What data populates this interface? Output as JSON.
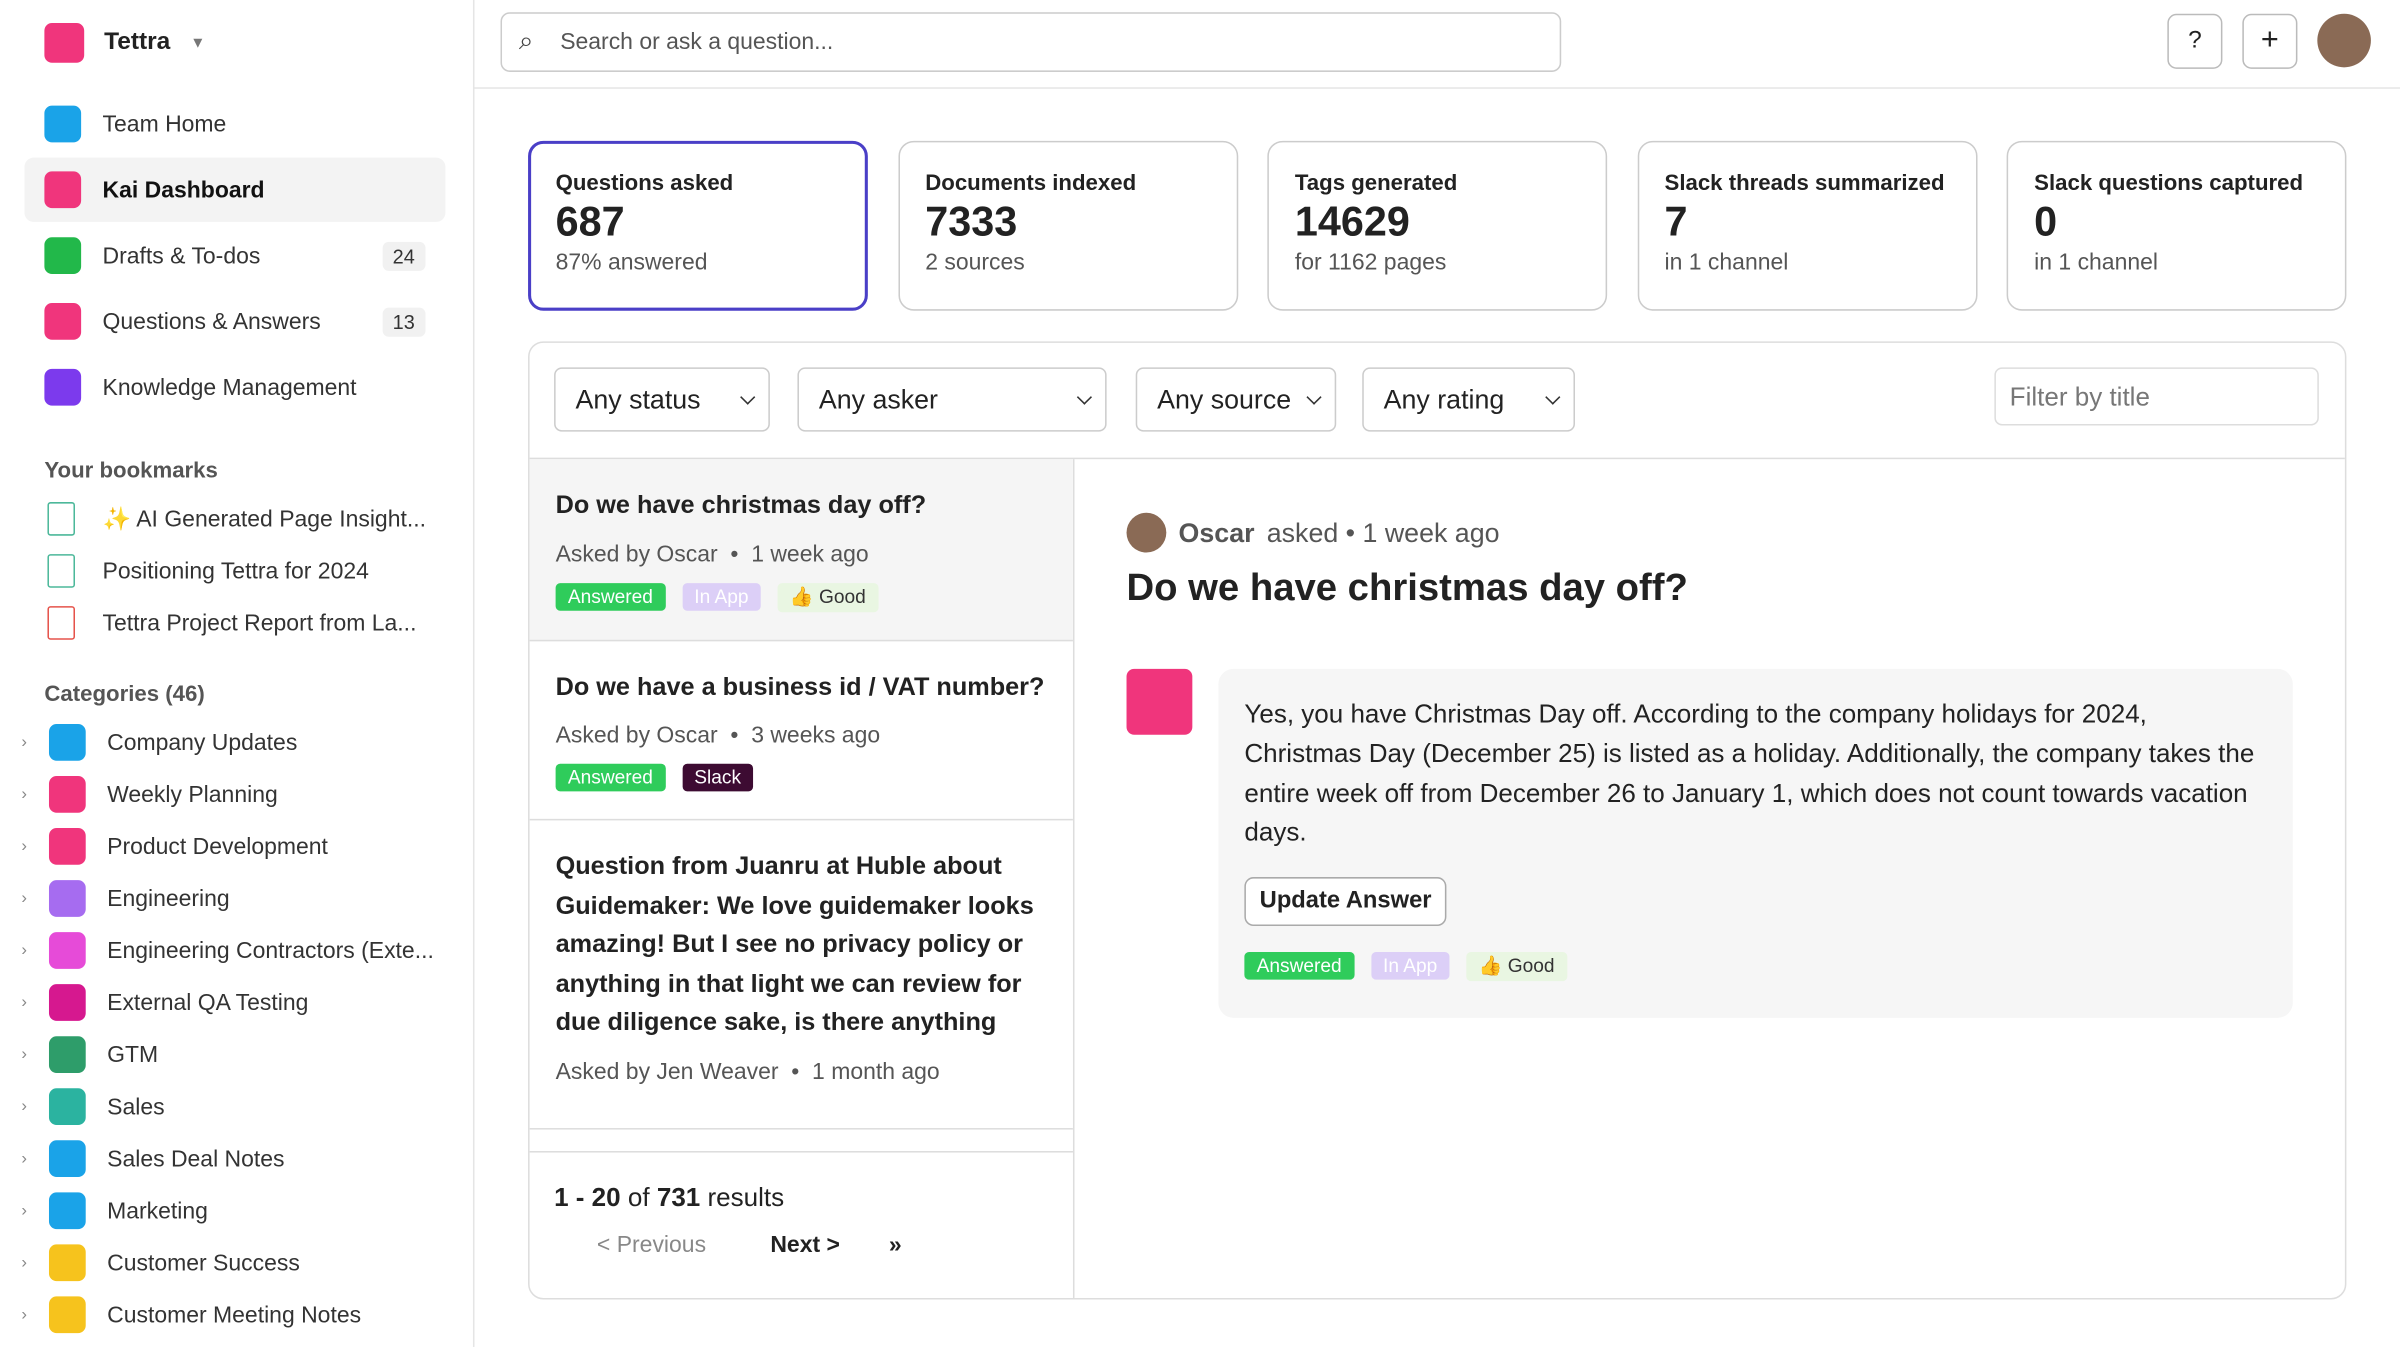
{
  "workspace": "Tettra",
  "search_placeholder": "Search or ask a question...",
  "nav": [
    {
      "label": "Team Home",
      "color": "#1aa3e8"
    },
    {
      "label": "Kai Dashboard",
      "color": "#f0357c"
    },
    {
      "label": "Drafts & To-dos",
      "count": 24,
      "color": "#22b84a"
    },
    {
      "label": "Questions & Answers",
      "count": 13,
      "color": "#f0357c"
    },
    {
      "label": "Knowledge Management",
      "color": "#7c3aed"
    }
  ],
  "bookmarks_title": "Your bookmarks",
  "bookmarks": [
    "✨ AI Generated Page Insight...",
    "Positioning Tettra for 2024",
    "Tettra Project Report from La..."
  ],
  "categories_title": "Categories (46)",
  "categories": [
    {
      "label": "Company Updates",
      "color": "#1aa3e8"
    },
    {
      "label": "Weekly Planning",
      "color": "#f0357c"
    },
    {
      "label": "Product Development",
      "color": "#f0357c"
    },
    {
      "label": "Engineering",
      "color": "#a66cf0"
    },
    {
      "label": "Engineering Contractors (Exte...",
      "color": "#e64bd8"
    },
    {
      "label": "External QA Testing",
      "color": "#d6188f"
    },
    {
      "label": "GTM",
      "color": "#2e9d6a"
    },
    {
      "label": "Sales",
      "color": "#2bb3a0"
    },
    {
      "label": "Sales Deal Notes",
      "color": "#1aa3e8"
    },
    {
      "label": "Marketing",
      "color": "#1aa3e8"
    },
    {
      "label": "Customer Success",
      "color": "#f6c31d"
    },
    {
      "label": "Customer Meeting Notes",
      "color": "#f6c31d"
    }
  ],
  "stats": [
    {
      "label": "Questions asked",
      "value": 687,
      "sub": "87% answered"
    },
    {
      "label": "Documents indexed",
      "value": 7333,
      "sub": "2 sources"
    },
    {
      "label": "Tags generated",
      "value": 14629,
      "sub": "for 1162 pages"
    },
    {
      "label": "Slack threads summarized",
      "value": 7,
      "sub": "in 1 channel"
    },
    {
      "label": "Slack questions captured",
      "value": 0,
      "sub": "in 1 channel"
    }
  ],
  "filters": [
    "Any status",
    "Any asker",
    "Any source",
    "Any rating"
  ],
  "filter_placeholder": "Filter by title",
  "questions": [
    {
      "title": "Do we have christmas day off?",
      "meta": "Asked by Oscar  •  1 week ago",
      "tags": [
        "Answered",
        "In App",
        "👍 Good"
      ]
    },
    {
      "title": "Do we have a business id / VAT number?",
      "meta": "Asked by Oscar  •  3 weeks ago",
      "tags": [
        "Answered",
        "Slack"
      ]
    },
    {
      "title": "Question from Juanru at Huble about Guidemaker: We love guidemaker looks amazing! But I see no privacy policy or anything in that light we can review for due diligence sake, is there anything",
      "meta": "Asked by Jen Weaver  •  1 month ago",
      "tags": []
    }
  ],
  "pagination": {
    "range": "1 - 20",
    "of": "of",
    "total": "731",
    "results": "results",
    "prev": "< Previous",
    "next": "Next >",
    "last": "»"
  },
  "detail": {
    "asker": "Oscar",
    "asked": "asked • 1 week ago",
    "title": "Do we have christmas day off?",
    "answer": "Yes, you have Christmas Day off. According to the company holidays for 2024, Christmas Day (December 25) is listed as a holiday. Additionally, the company takes the entire week off from December 26 to January 1, which does not count towards vacation days.",
    "button": "Update Answer",
    "tags": [
      "Answered",
      "In App",
      "👍 Good"
    ]
  }
}
